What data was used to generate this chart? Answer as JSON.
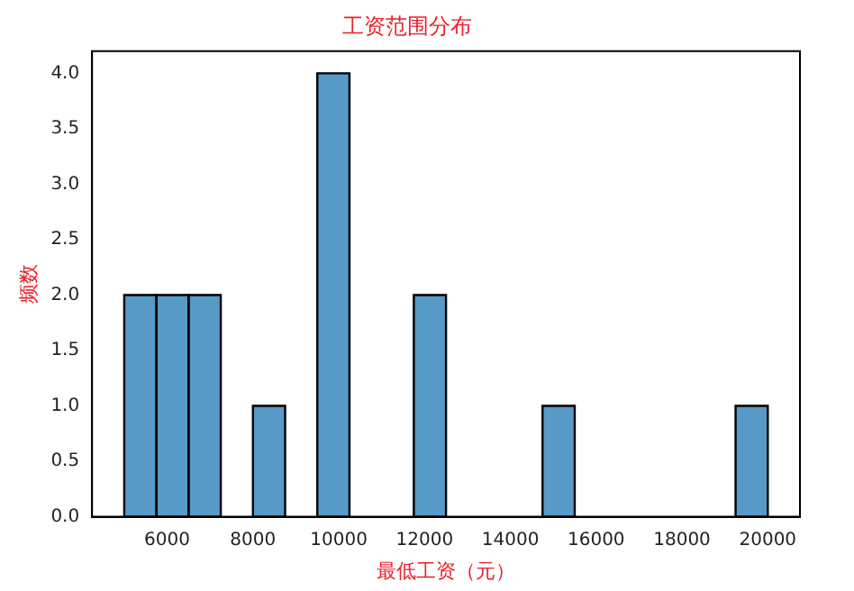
{
  "chart_data": {
    "type": "histogram",
    "title": "工资范围分布",
    "xlabel": "最低工资（元）",
    "ylabel": "频数",
    "bins": [
      5000,
      5750,
      6500,
      7250,
      8000,
      8750,
      9500,
      10250,
      11000,
      11750,
      12500,
      13250,
      14000,
      14750,
      15500,
      16250,
      17000,
      17750,
      18500,
      19250,
      20000
    ],
    "values": [
      2,
      2,
      2,
      0,
      1,
      0,
      4,
      0,
      0,
      2,
      0,
      0,
      0,
      1,
      0,
      0,
      0,
      0,
      0,
      1
    ],
    "color": "#5799c7",
    "xlim": [
      4250,
      20750
    ],
    "xticks": [
      6000,
      8000,
      10000,
      12000,
      14000,
      16000,
      18000,
      20000
    ],
    "ylim": [
      0,
      4.2
    ],
    "yticks": [
      {
        "value": 0,
        "label": "0.0"
      },
      {
        "value": 0.5,
        "label": "0.5"
      },
      {
        "value": 1,
        "label": "1.0"
      },
      {
        "value": 1.5,
        "label": "1.5"
      },
      {
        "value": 2,
        "label": "2.0"
      },
      {
        "value": 2.5,
        "label": "2.5"
      },
      {
        "value": 3,
        "label": "3.0"
      },
      {
        "value": 3.5,
        "label": "3.5"
      },
      {
        "value": 4,
        "label": "4.0"
      }
    ],
    "grid": false,
    "legend": false
  }
}
